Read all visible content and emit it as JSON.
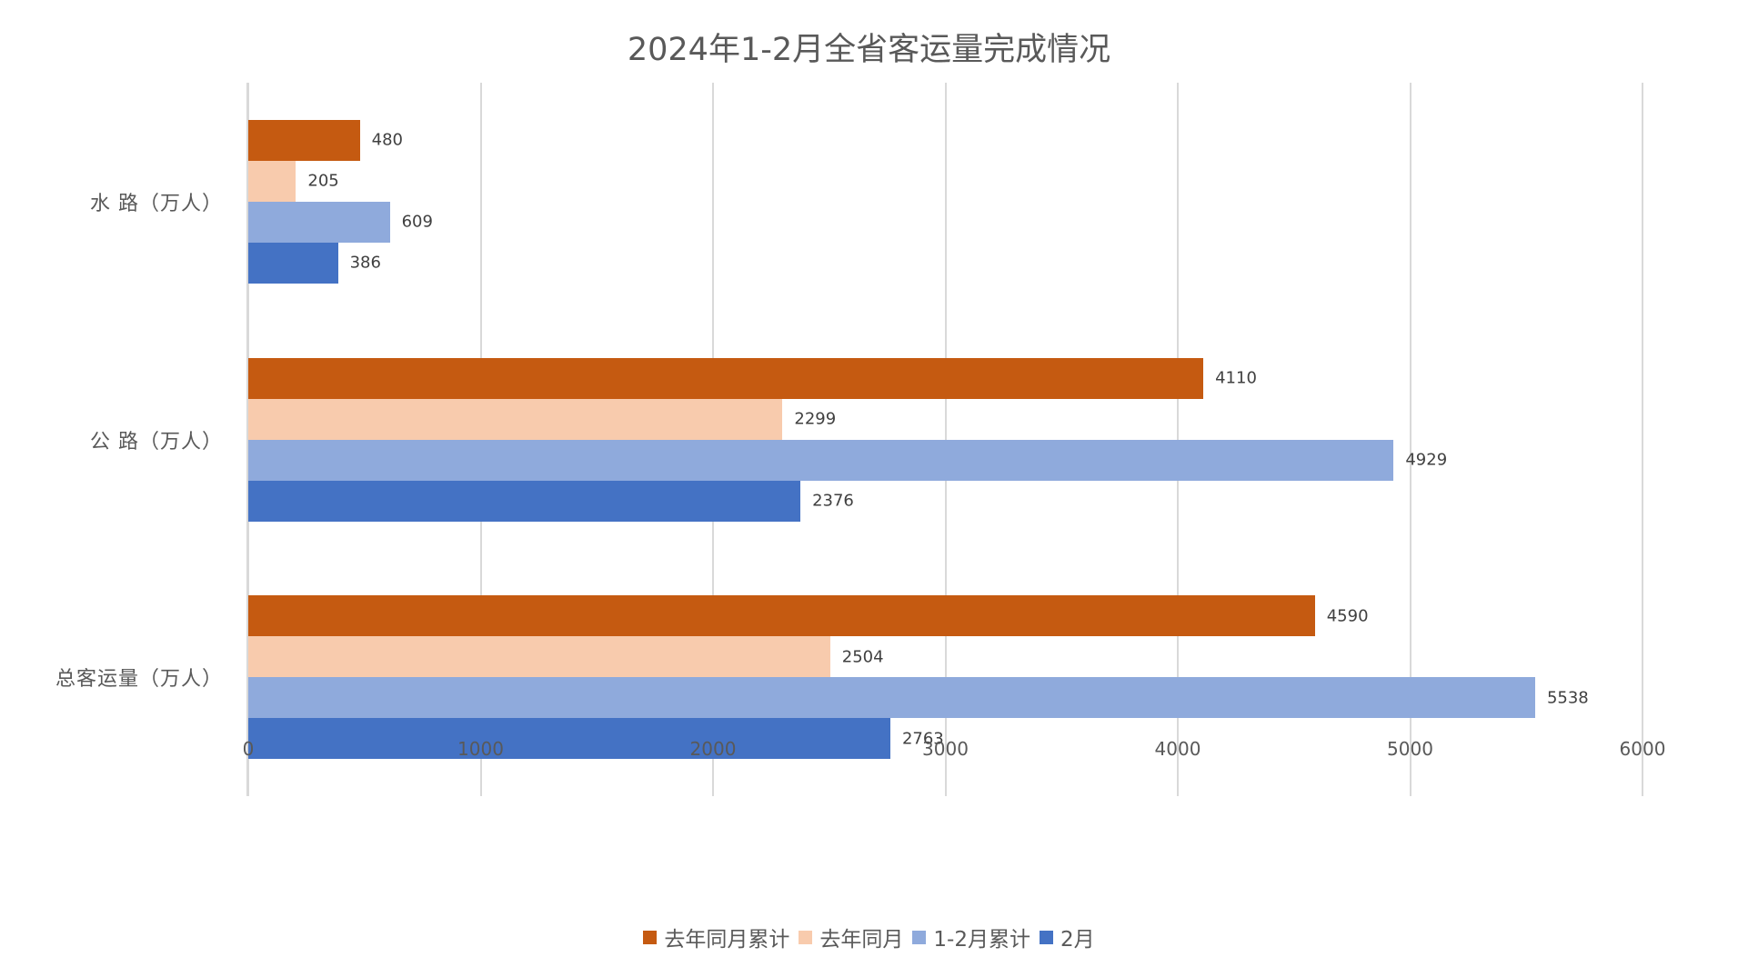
{
  "chart_data": {
    "type": "bar",
    "orientation": "horizontal",
    "title": "2024年1-2月全省客运量完成情况",
    "categories": [
      "水 路（万人）",
      "公 路（万人）",
      "总客运量（万人）"
    ],
    "series": [
      {
        "name": "去年同月累计",
        "color": "#C55A11",
        "values": [
          480,
          4110,
          4590
        ]
      },
      {
        "name": "去年同月",
        "color": "#F8CBAD",
        "values": [
          205,
          2299,
          2504
        ]
      },
      {
        "name": "1-2月累计",
        "color": "#8FAADC",
        "values": [
          609,
          4929,
          5538
        ]
      },
      {
        "name": "2月",
        "color": "#4472C4",
        "values": [
          386,
          2376,
          2763
        ]
      }
    ],
    "xlabel": "",
    "ylabel": "",
    "xlim": [
      0,
      6000
    ],
    "xticks": [
      "0",
      "1000",
      "2000",
      "3000",
      "4000",
      "5000",
      "6000"
    ],
    "grid": true,
    "data_labels": true,
    "legend_position": "bottom"
  }
}
